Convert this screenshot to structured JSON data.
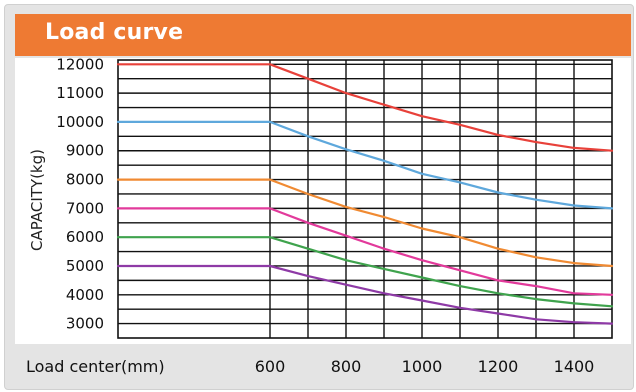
{
  "header": {
    "title": "Load curve"
  },
  "chart_data": {
    "type": "line",
    "xlabel": "Load center(mm)",
    "ylabel": "CAPACITY(kg)",
    "x_ticks": [
      600,
      800,
      1000,
      1200,
      1400
    ],
    "y_ticks": [
      3000,
      4000,
      5000,
      6000,
      7000,
      8000,
      9000,
      10000,
      11000,
      12000
    ],
    "xlim": [
      200,
      1500
    ],
    "ylim": [
      2500,
      12150
    ],
    "grid": true,
    "series": [
      {
        "color": "#e8413a",
        "x": [
          200,
          600,
          700,
          800,
          900,
          1000,
          1100,
          1200,
          1300,
          1400,
          1500
        ],
        "values": [
          12000,
          12000,
          11500,
          11000,
          10600,
          10200,
          9900,
          9550,
          9300,
          9100,
          9000
        ]
      },
      {
        "color": "#5ea8dc",
        "x": [
          200,
          600,
          700,
          800,
          900,
          1000,
          1100,
          1200,
          1300,
          1400,
          1500
        ],
        "values": [
          10000,
          10000,
          9500,
          9050,
          8650,
          8200,
          7900,
          7550,
          7300,
          7100,
          7000
        ]
      },
      {
        "color": "#f08a32",
        "x": [
          200,
          600,
          700,
          800,
          900,
          1000,
          1100,
          1200,
          1300,
          1400,
          1500
        ],
        "values": [
          8000,
          8000,
          7500,
          7050,
          6700,
          6300,
          6000,
          5600,
          5300,
          5100,
          5000
        ]
      },
      {
        "color": "#e23a9b",
        "x": [
          200,
          600,
          700,
          800,
          900,
          1000,
          1100,
          1200,
          1300,
          1400,
          1500
        ],
        "values": [
          7000,
          7000,
          6500,
          6050,
          5600,
          5200,
          4850,
          4500,
          4300,
          4050,
          4000
        ]
      },
      {
        "color": "#3fa34d",
        "x": [
          200,
          600,
          700,
          800,
          900,
          1000,
          1100,
          1200,
          1300,
          1400,
          1500
        ],
        "values": [
          6000,
          6000,
          5600,
          5200,
          4900,
          4600,
          4300,
          4050,
          3850,
          3700,
          3600
        ]
      },
      {
        "color": "#8e3aa6",
        "x": [
          200,
          600,
          700,
          800,
          900,
          1000,
          1100,
          1200,
          1300,
          1400,
          1500
        ],
        "values": [
          5000,
          5000,
          4650,
          4350,
          4050,
          3800,
          3550,
          3350,
          3150,
          3050,
          3000
        ]
      }
    ]
  }
}
